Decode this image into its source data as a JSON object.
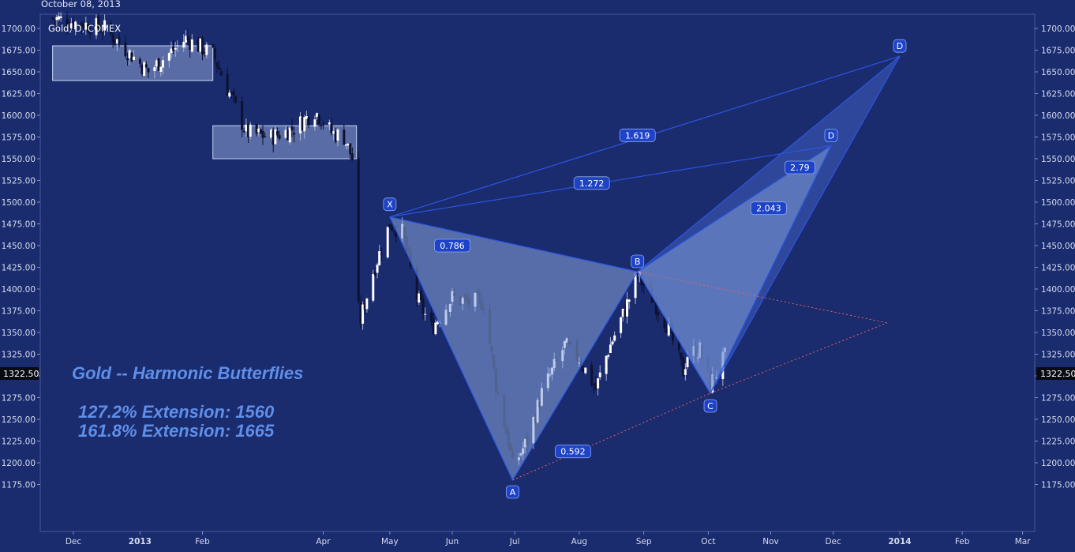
{
  "header": {
    "date": "October 08, 2013"
  },
  "symbol": "Gold, D, COMEX",
  "annotations": {
    "title": "Gold -- Harmonic Butterflies",
    "line1": "127.2% Extension: 1560",
    "line2": "161.8% Extension: 1665"
  },
  "price_tag": "1322.50",
  "chart_data": {
    "type": "candlestick",
    "title": "Gold, D, COMEX",
    "ylim": [
      1150,
      1720
    ],
    "y_ticks": [
      "1700.00",
      "1675.00",
      "1650.00",
      "1625.00",
      "1600.00",
      "1575.00",
      "1550.00",
      "1525.00",
      "1500.00",
      "1475.00",
      "1450.00",
      "1425.00",
      "1400.00",
      "1375.00",
      "1350.00",
      "1325.00",
      "1300.00",
      "1275.00",
      "1250.00",
      "1225.00",
      "1200.00",
      "1175.00"
    ],
    "x_ticks": [
      {
        "label": "Dec",
        "date": "2012-11-29",
        "bold": false
      },
      {
        "label": "2013",
        "date": "2012-12-31",
        "bold": true
      },
      {
        "label": "Feb",
        "date": "2013-01-30",
        "bold": false
      },
      {
        "label": "Apr",
        "date": "2013-03-29",
        "bold": false
      },
      {
        "label": "May",
        "date": "2013-04-30",
        "bold": false
      },
      {
        "label": "Jun",
        "date": "2013-05-30",
        "bold": false
      },
      {
        "label": "Jul",
        "date": "2013-06-29",
        "bold": false
      },
      {
        "label": "Aug",
        "date": "2013-07-30",
        "bold": false
      },
      {
        "label": "Sep",
        "date": "2013-08-30",
        "bold": false
      },
      {
        "label": "Oct",
        "date": "2013-09-30",
        "bold": false
      },
      {
        "label": "Nov",
        "date": "2013-10-30",
        "bold": false
      },
      {
        "label": "Dec",
        "date": "2013-11-29",
        "bold": false
      },
      {
        "label": "2014",
        "date": "2013-12-31",
        "bold": true
      },
      {
        "label": "Feb",
        "date": "2014-01-30",
        "bold": false
      },
      {
        "label": "Mar",
        "date": "2014-02-28",
        "bold": false
      }
    ],
    "points": [
      {
        "label": "X",
        "date": "2013-04-30",
        "value": 1483
      },
      {
        "label": "A",
        "date": "2013-06-28",
        "value": 1180
      },
      {
        "label": "B",
        "date": "2013-08-27",
        "value": 1420
      },
      {
        "label": "C",
        "date": "2013-10-01",
        "value": 1280
      },
      {
        "label": "D",
        "date": "2013-11-28",
        "value": 1565
      },
      {
        "label": "D",
        "date": "2013-12-31",
        "value": 1668
      }
    ],
    "ratios": [
      {
        "label": "0.786",
        "date": "2013-05-30",
        "value": 1450
      },
      {
        "label": "0.592",
        "date": "2013-07-27",
        "value": 1213
      },
      {
        "label": "2.043",
        "date": "2013-10-29",
        "value": 1493
      },
      {
        "label": "2.79",
        "date": "2013-11-13",
        "value": 1540
      },
      {
        "label": "1.272",
        "date": "2013-08-05",
        "value": 1522
      },
      {
        "label": "1.619",
        "date": "2013-08-27",
        "value": 1577
      }
    ],
    "target_zones": [
      {
        "start": "2012-11-19",
        "end": "2013-02-04",
        "low": 1640,
        "high": 1680
      },
      {
        "start": "2013-02-04",
        "end": "2013-04-14",
        "low": 1550,
        "high": 1588
      }
    ],
    "dotted_projection": {
      "date": "2013-12-25",
      "value": 1361
    },
    "anchors": [
      {
        "date": "2012-11-19",
        "value": 1712
      },
      {
        "date": "2012-12-14",
        "value": 1700
      },
      {
        "date": "2013-01-04",
        "value": 1650
      },
      {
        "date": "2013-01-22",
        "value": 1688
      },
      {
        "date": "2013-02-04",
        "value": 1670
      },
      {
        "date": "2013-02-08",
        "value": 1648
      },
      {
        "date": "2013-02-20",
        "value": 1580
      },
      {
        "date": "2013-03-04",
        "value": 1575
      },
      {
        "date": "2013-03-15",
        "value": 1585
      },
      {
        "date": "2013-03-25",
        "value": 1605
      },
      {
        "date": "2013-04-02",
        "value": 1580
      },
      {
        "date": "2013-04-08",
        "value": 1575
      },
      {
        "date": "2013-04-12",
        "value": 1550
      },
      {
        "date": "2013-04-15",
        "value": 1375
      },
      {
        "date": "2013-04-16",
        "value": 1365
      },
      {
        "date": "2013-04-22",
        "value": 1420
      },
      {
        "date": "2013-04-30",
        "value": 1475
      },
      {
        "date": "2013-05-06",
        "value": 1465
      },
      {
        "date": "2013-05-13",
        "value": 1390
      },
      {
        "date": "2013-05-20",
        "value": 1355
      },
      {
        "date": "2013-05-30",
        "value": 1390
      },
      {
        "date": "2013-06-07",
        "value": 1385
      },
      {
        "date": "2013-06-14",
        "value": 1385
      },
      {
        "date": "2013-06-20",
        "value": 1290
      },
      {
        "date": "2013-06-26",
        "value": 1225
      },
      {
        "date": "2013-06-28",
        "value": 1195
      },
      {
        "date": "2013-07-05",
        "value": 1225
      },
      {
        "date": "2013-07-12",
        "value": 1280
      },
      {
        "date": "2013-07-23",
        "value": 1335
      },
      {
        "date": "2013-07-30",
        "value": 1320
      },
      {
        "date": "2013-08-07",
        "value": 1285
      },
      {
        "date": "2013-08-13",
        "value": 1330
      },
      {
        "date": "2013-08-20",
        "value": 1370
      },
      {
        "date": "2013-08-27",
        "value": 1415
      },
      {
        "date": "2013-09-03",
        "value": 1390
      },
      {
        "date": "2013-09-10",
        "value": 1360
      },
      {
        "date": "2013-09-18",
        "value": 1305
      },
      {
        "date": "2013-09-20",
        "value": 1325
      },
      {
        "date": "2013-09-26",
        "value": 1330
      },
      {
        "date": "2013-10-01",
        "value": 1290
      },
      {
        "date": "2013-10-08",
        "value": 1322
      }
    ]
  },
  "colors": {
    "background": "#1a2b6e",
    "candle_up": "#ffffff",
    "candle_down": "#0d1230",
    "pattern_fill": "#88a4dc",
    "pattern_line": "#2a55e0",
    "label_box": "#1e43c8",
    "zone_fill": "#a8bce8",
    "dotted_red": "#e86060"
  },
  "icons": {
    "price_marker": "price-tag-icon"
  }
}
